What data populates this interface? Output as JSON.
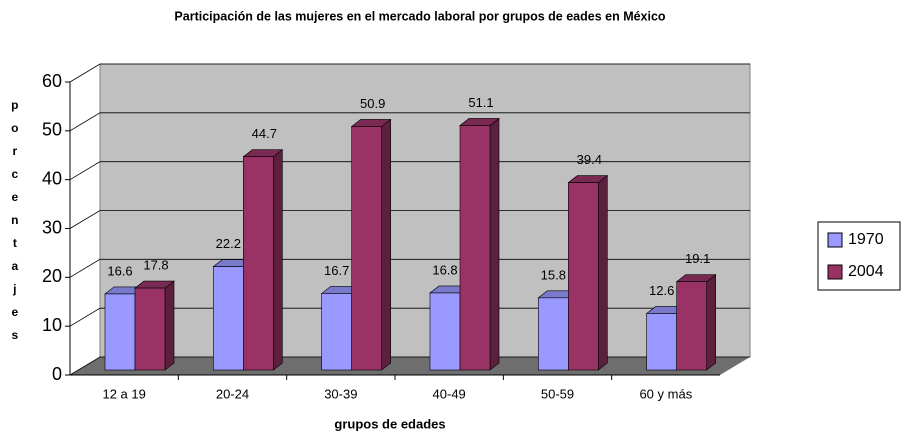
{
  "chart_data": {
    "type": "bar3d",
    "title": "Participación de las mujeres en el mercado laboral por grupos de eades en México",
    "x_label": "grupos de edades",
    "y_label": "porcentajes",
    "categories": [
      "12 a 19",
      "20-24",
      "30-39",
      "40-49",
      "50-59",
      "60 y más"
    ],
    "series": [
      {
        "name": "1970",
        "color": "#9999ff",
        "values": [
          16.6,
          22.2,
          16.7,
          16.8,
          15.8,
          12.6
        ]
      },
      {
        "name": "2004",
        "color": "#993366",
        "values": [
          17.8,
          44.7,
          50.9,
          51.1,
          39.4,
          19.1
        ]
      }
    ],
    "ylim": [
      0,
      60
    ],
    "yticks": [
      0,
      10,
      20,
      30,
      40,
      50,
      60
    ],
    "grid": true,
    "legend": "right"
  }
}
